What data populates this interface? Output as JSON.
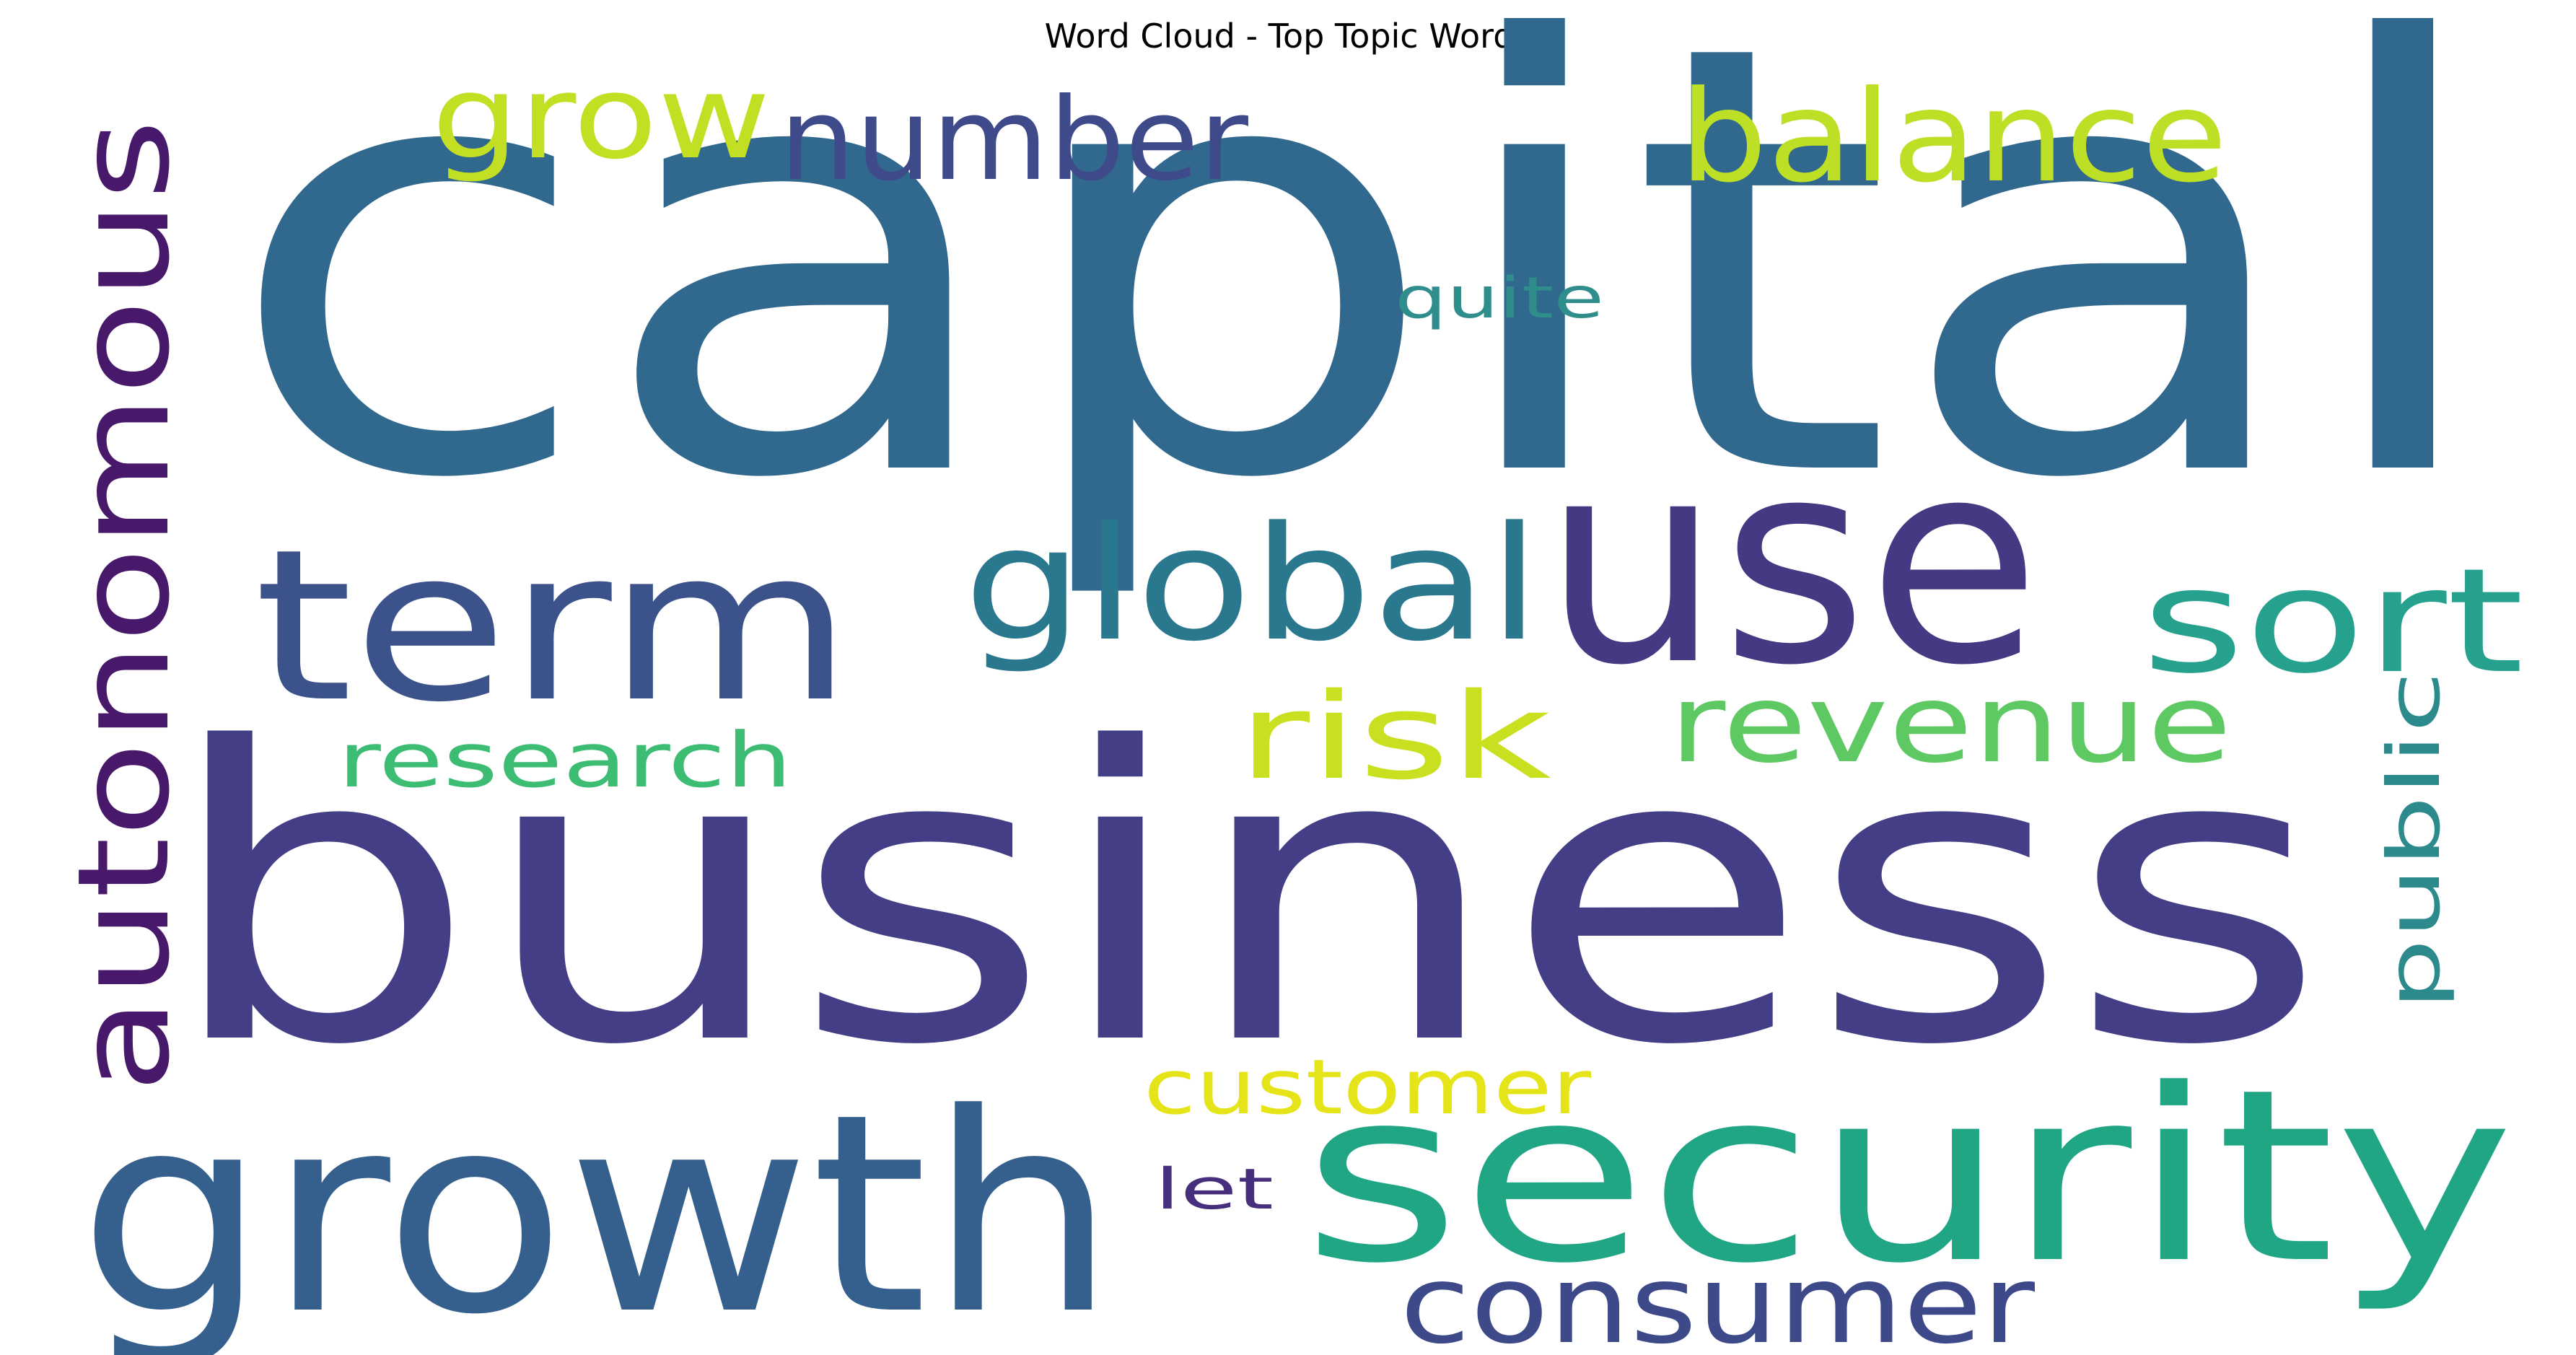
{
  "chart_data": {
    "type": "wordcloud",
    "title": "Word Cloud - Top Topic Words",
    "background": "#ffffff",
    "colormap": "viridis",
    "words": [
      {
        "text": "capital",
        "color": "#31688e"
      },
      {
        "text": "business",
        "color": "#433e85"
      },
      {
        "text": "growth",
        "color": "#35608d"
      },
      {
        "text": "security",
        "color": "#21a685"
      },
      {
        "text": "use",
        "color": "#443a83"
      },
      {
        "text": "term",
        "color": "#3b528b"
      },
      {
        "text": "autonomous",
        "color": "#48186a"
      },
      {
        "text": "global",
        "color": "#2a788e"
      },
      {
        "text": "sort",
        "color": "#25a18e"
      },
      {
        "text": "number",
        "color": "#3e4a89"
      },
      {
        "text": "balance",
        "color": "#bddf26"
      },
      {
        "text": "grow",
        "color": "#c2df23"
      },
      {
        "text": "risk",
        "color": "#c8e020"
      },
      {
        "text": "revenue",
        "color": "#5ec962"
      },
      {
        "text": "consumer",
        "color": "#3e4989"
      },
      {
        "text": "research",
        "color": "#3dbc74"
      },
      {
        "text": "public",
        "color": "#2d8a8c"
      },
      {
        "text": "customer",
        "color": "#e5e419"
      },
      {
        "text": "quite",
        "color": "#2f8e8c"
      },
      {
        "text": "let",
        "color": "#472f7d"
      }
    ]
  }
}
